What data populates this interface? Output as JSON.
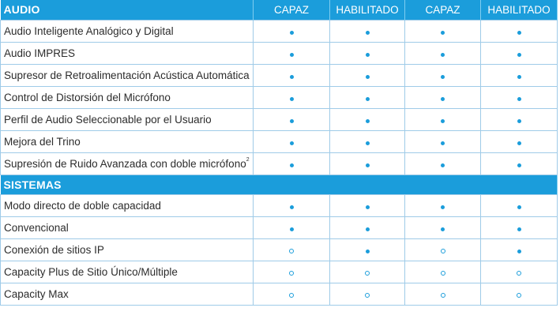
{
  "audio": {
    "title": "AUDIO",
    "columns": [
      "CAPAZ",
      "HABILITADO",
      "CAPAZ",
      "HABILITADO"
    ],
    "rows": [
      {
        "label": "Audio Inteligente Analógico y Digital",
        "sup": "",
        "marks": [
          "full",
          "full",
          "full",
          "full"
        ]
      },
      {
        "label": "Audio IMPRES",
        "sup": "",
        "marks": [
          "full",
          "full",
          "full",
          "full"
        ]
      },
      {
        "label": "Supresor de Retroalimentación Acústica Automática",
        "sup": "",
        "marks": [
          "full",
          "full",
          "full",
          "full"
        ]
      },
      {
        "label": "Control de Distorsión del Micrófono",
        "sup": "",
        "marks": [
          "full",
          "full",
          "full",
          "full"
        ]
      },
      {
        "label": "Perfil de Audio Seleccionable por el Usuario",
        "sup": "",
        "marks": [
          "full",
          "full",
          "full",
          "full"
        ]
      },
      {
        "label": "Mejora del Trino",
        "sup": "",
        "marks": [
          "full",
          "full",
          "full",
          "full"
        ]
      },
      {
        "label": "Supresión de Ruido Avanzada con doble micrófono",
        "sup": "2",
        "marks": [
          "full",
          "full",
          "full",
          "full"
        ]
      }
    ]
  },
  "sistemas": {
    "title": "SISTEMAS",
    "rows": [
      {
        "label": "Modo directo de doble capacidad",
        "sup": "",
        "marks": [
          "full",
          "full",
          "full",
          "full"
        ]
      },
      {
        "label": "Convencional",
        "sup": "",
        "marks": [
          "full",
          "full",
          "full",
          "full"
        ]
      },
      {
        "label": "Conexión de sitios IP",
        "sup": "",
        "marks": [
          "empty",
          "full",
          "empty",
          "full"
        ]
      },
      {
        "label": "Capacity Plus de Sitio Único/Múltiple",
        "sup": "",
        "marks": [
          "empty",
          "empty",
          "empty",
          "empty"
        ]
      },
      {
        "label": "Capacity Max",
        "sup": "",
        "marks": [
          "empty",
          "empty",
          "empty",
          "empty"
        ]
      }
    ]
  },
  "colors": {
    "accent": "#1b9ddb",
    "grid": "#9fcbe8"
  },
  "mark_legend": {
    "full": "filled-dot-icon",
    "empty": "hollow-dot-icon"
  }
}
